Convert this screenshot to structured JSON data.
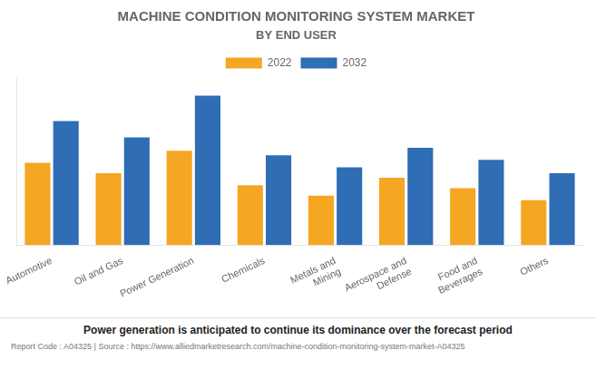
{
  "chart_data": {
    "type": "bar",
    "title": "MACHINE CONDITION MONITORING SYSTEM MARKET",
    "subtitle": "BY END USER",
    "footnote": "Power generation is anticipated to continue its dominance over the forecast period",
    "report_code": "Report Code : A04325  |  Source : https://www.alliedmarketresearch.com/machine-condition-monitoring-system-market-A04325",
    "categories": [
      "Automotive",
      "Oil and Gas",
      "Power Generation",
      "Chemicals",
      "Metals and\nMining",
      "Aerospace and\nDefense",
      "Food and\nBeverages",
      "Others"
    ],
    "series": [
      {
        "name": "2022",
        "color": "#F5A623",
        "values": [
          0.55,
          0.48,
          0.63,
          0.4,
          0.33,
          0.45,
          0.38,
          0.3
        ]
      },
      {
        "name": "2032",
        "color": "#2F6DB5",
        "values": [
          0.83,
          0.72,
          1.0,
          0.6,
          0.52,
          0.65,
          0.57,
          0.48
        ]
      }
    ],
    "ylim": [
      0,
      1.12
    ],
    "yticks": [],
    "grid": false,
    "tick_labels": "x",
    "legend": "top"
  }
}
